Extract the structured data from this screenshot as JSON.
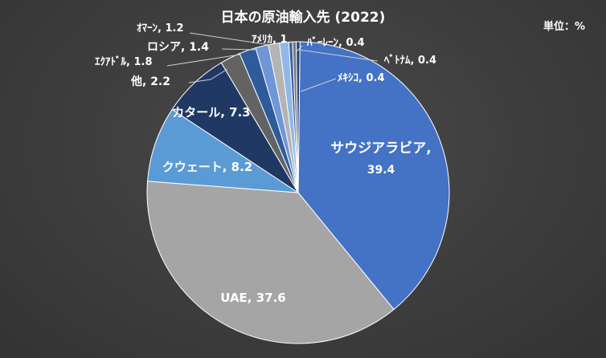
{
  "chart_data": {
    "type": "pie",
    "title": "日本の原油輸入先 (2022)",
    "unit_label": "単位：%",
    "slices": [
      {
        "name": "サウジアラビア",
        "value": 39.4,
        "color": "#4472c4"
      },
      {
        "name": "UAE",
        "value": 37.6,
        "color": "#a5a5a5"
      },
      {
        "name": "クウェート",
        "value": 8.2,
        "color": "#5b9bd5"
      },
      {
        "name": "カタール",
        "value": 7.3,
        "color": "#203864"
      },
      {
        "name": "他",
        "value": 2.2,
        "color": "#636363"
      },
      {
        "name": "エクアドル",
        "value": 1.8,
        "color": "#2e5b9a"
      },
      {
        "name": "ロシア",
        "value": 1.4,
        "color": "#6f97d8"
      },
      {
        "name": "オマーン",
        "value": 1.2,
        "color": "#b4b4b4"
      },
      {
        "name": "アメリカ",
        "value": 1,
        "color": "#8fb8e6"
      },
      {
        "name": "バーレーン",
        "value": 0.4,
        "color": "#3a5fa8"
      },
      {
        "name": "ベトナム",
        "value": 0.4,
        "color": "#7a7a7a"
      },
      {
        "name": "メキシコ",
        "value": 0.4,
        "color": "#264478"
      }
    ],
    "labels": [
      {
        "text": "サウジアラビア,",
        "value_text": "39.4"
      },
      {
        "text": "UAE, 37.6"
      },
      {
        "text": "クウェート, 8.2"
      },
      {
        "text": "カタール, 7.3"
      },
      {
        "text": "他, 2.2"
      },
      {
        "text": "ｴｸｱﾄﾞﾙ, 1.8"
      },
      {
        "text": "ロシア, 1.4"
      },
      {
        "text": "ｵﾏｰﾝ, 1.2"
      },
      {
        "text": "ｱﾒﾘｶ, 1"
      },
      {
        "text": "ﾊﾞｰﾚｰﾝ, 0.4"
      },
      {
        "text": "ﾍﾞﾄﾅﾑ, 0.4"
      },
      {
        "text": "ﾒｷｼｺ, 0.4"
      }
    ]
  }
}
